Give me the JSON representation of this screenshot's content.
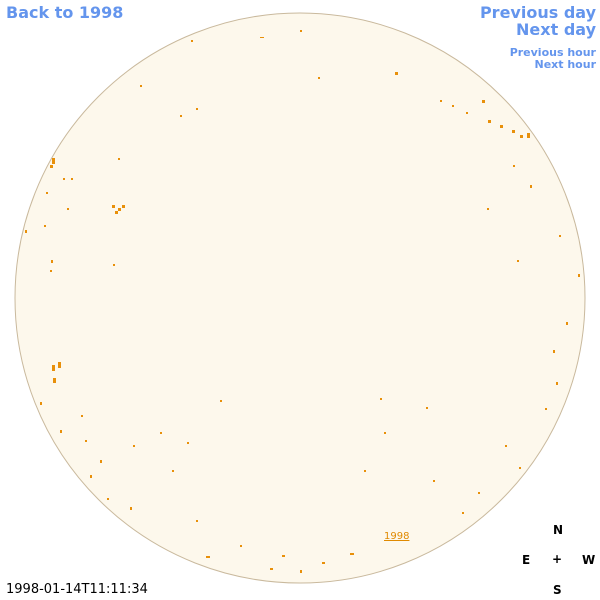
{
  "nav": {
    "back": "Back to 1998",
    "previous_day": "Previous day",
    "next_day": "Next day",
    "previous_hour": "Previous hour",
    "next_hour": "Next hour"
  },
  "disk_link": "1998",
  "timestamp": "1998-01-14T11:11:34",
  "compass": {
    "north": "N",
    "east": "E",
    "center": "+",
    "west": "W",
    "south": "S"
  }
}
